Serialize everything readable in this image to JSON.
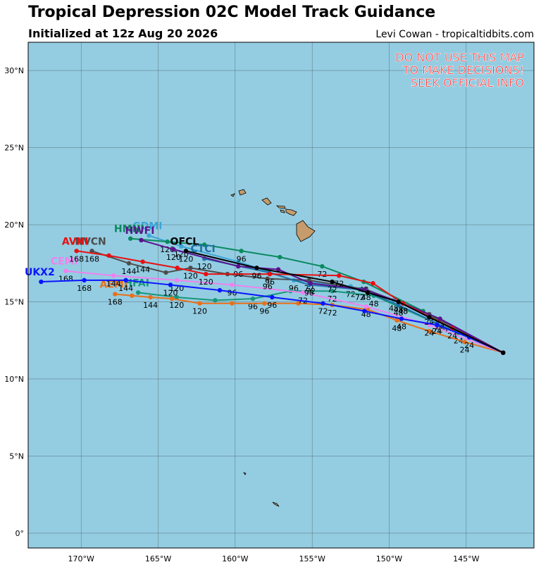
{
  "header": {
    "title": "Tropical Depression 02C Model Track Guidance",
    "subtitle": "Initialized at 12z Aug 20 2026",
    "credit": "Levi Cowan - tropicaltidbits.com"
  },
  "warning": [
    "DO NOT USE THIS MAP",
    "TO MAKE DECISIONS!",
    "SEEK OFFICIAL INFO"
  ],
  "map": {
    "lon_range": [
      -173.44,
      -140.6
    ],
    "lat_range": [
      -0.96,
      31.83
    ],
    "lon_ticks": [
      {
        "value": -170,
        "label": "170°W"
      },
      {
        "value": -165,
        "label": "165°W"
      },
      {
        "value": -160,
        "label": "160°W"
      },
      {
        "value": -155,
        "label": "155°W"
      },
      {
        "value": -150,
        "label": "150°W"
      },
      {
        "value": -145,
        "label": "145°W"
      }
    ],
    "lat_ticks": [
      {
        "value": 30,
        "label": "30°N"
      },
      {
        "value": 25,
        "label": "25°N"
      },
      {
        "value": 20,
        "label": "20°N"
      },
      {
        "value": 15,
        "label": "15°N"
      },
      {
        "value": 10,
        "label": "10°N"
      },
      {
        "value": 5,
        "label": "5°N"
      },
      {
        "value": 0,
        "label": "0°"
      }
    ]
  },
  "tracks": [
    {
      "name": "GDMI",
      "color": "#3aa6d6",
      "lon": [
        -142.6,
        -146.5,
        -149.7,
        -152.5,
        -156.2,
        -159.8,
        -163.5,
        -165.6
      ],
      "lat": [
        11.7,
        13.7,
        15.1,
        16.0,
        16.4,
        17.6,
        18.6,
        19.3
      ],
      "hours": [
        null,
        24,
        48,
        72,
        96,
        null,
        120,
        null
      ]
    },
    {
      "name": "HMNI",
      "color": "#0b8a5e",
      "lon": [
        -142.6,
        -145.5,
        -147.8,
        -151.65,
        -154.35,
        -157.1,
        -159.6,
        -162.0,
        -164.4,
        -166.8
      ],
      "lat": [
        11.7,
        13.0,
        14.4,
        16.3,
        17.3,
        17.9,
        18.3,
        18.7,
        18.9,
        19.1
      ],
      "hours": [
        null,
        24,
        null,
        48,
        72,
        null,
        96,
        null,
        120,
        null
      ]
    },
    {
      "name": "HFAI",
      "color": "#17977a",
      "lon": [
        -142.6,
        -146.9,
        -151.0,
        -153.7,
        -156.4,
        -158.85,
        -161.3,
        -163.8,
        -166.3
      ],
      "lat": [
        11.7,
        13.6,
        15.4,
        15.7,
        15.7,
        15.2,
        15.1,
        15.3,
        15.6
      ],
      "hours": [
        null,
        24,
        48,
        72,
        null,
        96,
        null,
        120,
        null
      ]
    },
    {
      "name": "AEMI",
      "color": "#e8701a",
      "lon": [
        -142.6,
        -145.1,
        -147.4,
        -149.5,
        -151.4,
        -153.7,
        -155.9,
        -158.1,
        -160.2,
        -162.3,
        -164.1,
        -165.5,
        -166.7,
        -167.8
      ],
      "lat": [
        11.7,
        12.4,
        13.1,
        13.8,
        14.5,
        14.8,
        14.9,
        14.9,
        14.9,
        14.9,
        15.2,
        15.3,
        15.4,
        15.5
      ],
      "hours": [
        null,
        24,
        null,
        48,
        null,
        72,
        null,
        96,
        null,
        120,
        null,
        144,
        null,
        168
      ]
    },
    {
      "name": "CEMI",
      "color": "#f080f0",
      "lon": [
        -142.6,
        -147.4,
        -151.5,
        -155.6,
        -160.2,
        -163.8,
        -167.9,
        -171.0
      ],
      "lat": [
        11.7,
        13.5,
        14.7,
        15.6,
        16.1,
        16.4,
        16.7,
        17.0
      ],
      "hours": [
        null,
        24,
        48,
        72,
        96,
        120,
        144,
        168
      ]
    },
    {
      "name": "NVCN",
      "color": "#4d4d4d",
      "lon": [
        -142.6,
        -147.4,
        -151.5,
        -155.2,
        -157.9,
        -160.5,
        -162.9,
        -164.5,
        -166.9,
        -169.3
      ],
      "lat": [
        11.7,
        14.2,
        15.8,
        16.4,
        16.5,
        16.8,
        17.2,
        16.9,
        17.5,
        18.3
      ],
      "hours": [
        null,
        24,
        48,
        72,
        96,
        null,
        120,
        null,
        144,
        168
      ]
    },
    {
      "name": "CTCI",
      "color": "#1f6fa8",
      "lon": [
        -142.6,
        -146.9,
        -149.4,
        -151.9,
        -155.2,
        -157.8,
        -162.0
      ],
      "lat": [
        11.7,
        13.6,
        14.8,
        15.8,
        16.1,
        16.9,
        17.8
      ],
      "hours": [
        null,
        24,
        48,
        72,
        96,
        null,
        120
      ]
    },
    {
      "name": "HWFI",
      "color": "#5b128f",
      "lon": [
        -142.6,
        -146.7,
        -149.1,
        -151.6,
        -155.1,
        -157.2,
        -159.8,
        -164.0,
        -166.1
      ],
      "lat": [
        11.7,
        13.9,
        14.9,
        15.8,
        16.2,
        17.1,
        17.3,
        18.4,
        19.0
      ],
      "hours": [
        null,
        24,
        48,
        null,
        72,
        null,
        96,
        120,
        null
      ]
    },
    {
      "name": "UKX2",
      "color": "#0a14ff",
      "lon": [
        -142.6,
        -144.8,
        -146.9,
        -149.2,
        -151.6,
        -154.3,
        -157.6,
        -161.0,
        -164.2,
        -167.1,
        -169.8,
        -172.6
      ],
      "lat": [
        11.7,
        12.7,
        13.5,
        13.9,
        14.4,
        14.9,
        15.3,
        15.75,
        16.1,
        16.4,
        16.4,
        16.3
      ],
      "hours": [
        null,
        24,
        null,
        48,
        null,
        72,
        96,
        null,
        120,
        144,
        168,
        null
      ]
    },
    {
      "name": "AVNI",
      "color": "#e81010",
      "lon": [
        -142.6,
        -145.9,
        -149.1,
        -151.05,
        -153.26,
        -157.75,
        -161.9,
        -163.76,
        -166.0,
        -168.2,
        -170.3
      ],
      "lat": [
        11.7,
        13.3,
        14.9,
        16.2,
        16.7,
        16.8,
        16.8,
        17.2,
        17.6,
        18.0,
        18.3
      ],
      "hours": [
        null,
        24,
        48,
        null,
        72,
        96,
        120,
        null,
        144,
        null,
        168
      ]
    },
    {
      "name": "OFCL",
      "color": "#000000",
      "lon": [
        -142.6,
        -147.4,
        -149.4,
        -151.4,
        -153.7,
        -158.6,
        -163.2
      ],
      "lat": [
        11.7,
        14.0,
        15.0,
        15.6,
        16.3,
        17.2,
        18.3
      ],
      "hours": [
        null,
        null,
        48,
        null,
        72,
        96,
        120
      ]
    }
  ]
}
